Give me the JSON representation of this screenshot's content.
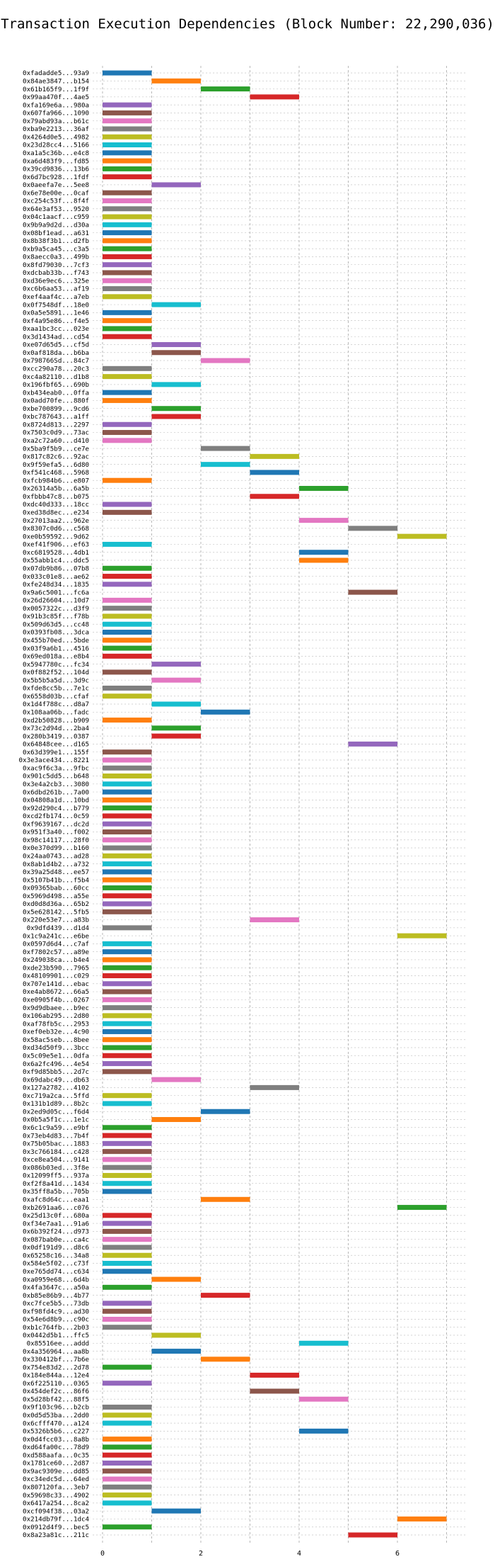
{
  "chart_data": {
    "type": "bar",
    "orientation": "horizontal-range",
    "title": "Transaction Execution Dependencies (Block Number: 22,290,036)",
    "xlabel": "",
    "ylabel": "",
    "xlim": [
      -0.2,
      7.4
    ],
    "xticks": [
      "0",
      "2",
      "4",
      "6"
    ],
    "grid": true,
    "palette": [
      "#1f77b4",
      "#ff7f0e",
      "#2ca02c",
      "#d62728",
      "#9467bd",
      "#8c564b",
      "#e377c2",
      "#7f7f7f",
      "#bcbd22",
      "#17becf"
    ],
    "transactions": [
      {
        "label": "0xfadadde5...93a9",
        "start": 0,
        "end": 1
      },
      {
        "label": "0x84ae3847...b154",
        "start": 1,
        "end": 2
      },
      {
        "label": "0x61b165f9...1f9f",
        "start": 2,
        "end": 3
      },
      {
        "label": "0x99aa470f...4ae5",
        "start": 3,
        "end": 4
      },
      {
        "label": "0xfa169e6a...980a",
        "start": 0,
        "end": 1
      },
      {
        "label": "0x607fa966...1090",
        "start": 0,
        "end": 1
      },
      {
        "label": "0x79abd93a...b61c",
        "start": 0,
        "end": 1
      },
      {
        "label": "0xba9e2213...36af",
        "start": 0,
        "end": 1
      },
      {
        "label": "0x4264d0e5...4982",
        "start": 0,
        "end": 1
      },
      {
        "label": "0x23d28cc4...5166",
        "start": 0,
        "end": 1
      },
      {
        "label": "0xa1a5c36b...e4c8",
        "start": 0,
        "end": 1
      },
      {
        "label": "0xa6d483f9...fd85",
        "start": 0,
        "end": 1
      },
      {
        "label": "0x39cd9836...13b6",
        "start": 0,
        "end": 1
      },
      {
        "label": "0x6d7bc928...1fdf",
        "start": 0,
        "end": 1
      },
      {
        "label": "0x0aeefa7e...5ee8",
        "start": 1,
        "end": 2
      },
      {
        "label": "0x6e78e00e...0caf",
        "start": 0,
        "end": 1
      },
      {
        "label": "0xc254c53f...8f4f",
        "start": 0,
        "end": 1
      },
      {
        "label": "0x64e3af53...9520",
        "start": 0,
        "end": 1
      },
      {
        "label": "0x04c1aacf...c959",
        "start": 0,
        "end": 1
      },
      {
        "label": "0x9b9a9d2d...d30a",
        "start": 0,
        "end": 1
      },
      {
        "label": "0x08bf1ead...a631",
        "start": 0,
        "end": 1
      },
      {
        "label": "0x8b38f3b1...d2fb",
        "start": 0,
        "end": 1
      },
      {
        "label": "0xb9a5ca45...c3a5",
        "start": 0,
        "end": 1
      },
      {
        "label": "0x8aecc0a3...499b",
        "start": 0,
        "end": 1
      },
      {
        "label": "0x8fd79030...7cf3",
        "start": 0,
        "end": 1
      },
      {
        "label": "0xdcbab33b...f743",
        "start": 0,
        "end": 1
      },
      {
        "label": "0xd36e9ec6...325e",
        "start": 0,
        "end": 1
      },
      {
        "label": "0xc6b6aa53...af19",
        "start": 0,
        "end": 1
      },
      {
        "label": "0xef4aaf4c...a7eb",
        "start": 0,
        "end": 1
      },
      {
        "label": "0x0f7548df...18e0",
        "start": 1,
        "end": 2
      },
      {
        "label": "0x0a5e5891...1e46",
        "start": 0,
        "end": 1
      },
      {
        "label": "0xf4a95e86...f4e5",
        "start": 0,
        "end": 1
      },
      {
        "label": "0xaa1bc3cc...023e",
        "start": 0,
        "end": 1
      },
      {
        "label": "0x3d1434ad...cd54",
        "start": 0,
        "end": 1
      },
      {
        "label": "0xe07d65d5...cf5d",
        "start": 1,
        "end": 2
      },
      {
        "label": "0x0af818da...b6ba",
        "start": 1,
        "end": 2
      },
      {
        "label": "0x798766Sd...84c7",
        "start": 2,
        "end": 3
      },
      {
        "label": "0xcc290a78...20c3",
        "start": 0,
        "end": 1
      },
      {
        "label": "0xc4a82110...d1b8",
        "start": 0,
        "end": 1
      },
      {
        "label": "0x196fbf65...690b",
        "start": 1,
        "end": 2
      },
      {
        "label": "0xb434eab0...0ffa",
        "start": 0,
        "end": 1
      },
      {
        "label": "0x0add70fe...880f",
        "start": 0,
        "end": 1
      },
      {
        "label": "0xbe700899...9cd6",
        "start": 1,
        "end": 2
      },
      {
        "label": "0xbc787643...a1ff",
        "start": 1,
        "end": 2
      },
      {
        "label": "0x8724d813...2297",
        "start": 0,
        "end": 1
      },
      {
        "label": "0x7503c0d9...73ac",
        "start": 0,
        "end": 1
      },
      {
        "label": "0xa2c72a60...d410",
        "start": 0,
        "end": 1
      },
      {
        "label": "0x5ba9f5b9...ce7e",
        "start": 2,
        "end": 3
      },
      {
        "label": "0x817c82c6...92ac",
        "start": 3,
        "end": 4
      },
      {
        "label": "0x9f59efa5...6d80",
        "start": 2,
        "end": 3
      },
      {
        "label": "0xf541c468...5968",
        "start": 3,
        "end": 4
      },
      {
        "label": "0xfcb984b6...e807",
        "start": 0,
        "end": 1
      },
      {
        "label": "0x26314a5b...6a5b",
        "start": 4,
        "end": 5
      },
      {
        "label": "0xfbbb47c8...b075",
        "start": 3,
        "end": 4
      },
      {
        "label": "0xdc40d333...18cc",
        "start": 0,
        "end": 1
      },
      {
        "label": "0xed38d8ec...e234",
        "start": 0,
        "end": 1
      },
      {
        "label": "0x27013aa2...962e",
        "start": 4,
        "end": 5
      },
      {
        "label": "0x8307c0d6...c568",
        "start": 5,
        "end": 6
      },
      {
        "label": "0xe0b59592...9d62",
        "start": 6,
        "end": 7
      },
      {
        "label": "0xef41f906...ef63",
        "start": 0,
        "end": 1
      },
      {
        "label": "0xc6819528...4db1",
        "start": 4,
        "end": 5
      },
      {
        "label": "0x55abb1c4...ddc5",
        "start": 4,
        "end": 5
      },
      {
        "label": "0x07db9b86...07b8",
        "start": 0,
        "end": 1
      },
      {
        "label": "0x033c01e8...ae62",
        "start": 0,
        "end": 1
      },
      {
        "label": "0xfe248d34...1835",
        "start": 0,
        "end": 1
      },
      {
        "label": "0x9a6c5001...fc6a",
        "start": 5,
        "end": 6
      },
      {
        "label": "0x26d26604...10d7",
        "start": 0,
        "end": 1
      },
      {
        "label": "0x0057322c...d3f9",
        "start": 0,
        "end": 1
      },
      {
        "label": "0x91b3c85f...f78b",
        "start": 0,
        "end": 1
      },
      {
        "label": "0x509d63d5...cc48",
        "start": 0,
        "end": 1
      },
      {
        "label": "0x0393fb08...3dca",
        "start": 0,
        "end": 1
      },
      {
        "label": "0x455b70ed...5bde",
        "start": 0,
        "end": 1
      },
      {
        "label": "0x03f9a6b1...4516",
        "start": 0,
        "end": 1
      },
      {
        "label": "0x69ed018a...e8b4",
        "start": 0,
        "end": 1
      },
      {
        "label": "0x5947780c...fc34",
        "start": 1,
        "end": 2
      },
      {
        "label": "0x0f882f52...104d",
        "start": 0,
        "end": 1
      },
      {
        "label": "0x5b5b5a5d...3d9c",
        "start": 1,
        "end": 2
      },
      {
        "label": "0xfde8cc5b...7e1c",
        "start": 0,
        "end": 1
      },
      {
        "label": "0x6558d03b...cfaf",
        "start": 0,
        "end": 1
      },
      {
        "label": "0x1d4f788c...d8a7",
        "start": 1,
        "end": 2
      },
      {
        "label": "0x108aa06b...fadc",
        "start": 2,
        "end": 3
      },
      {
        "label": "0xd2b50828...b909",
        "start": 0,
        "end": 1
      },
      {
        "label": "0x73c2d94d...2ba4",
        "start": 1,
        "end": 2
      },
      {
        "label": "0x280b3419...0387",
        "start": 1,
        "end": 2
      },
      {
        "label": "0x64848cee...d165",
        "start": 5,
        "end": 6
      },
      {
        "label": "0x63d399e1...155f",
        "start": 0,
        "end": 1
      },
      {
        "label": "0x3e3ace434...8221",
        "start": 0,
        "end": 1
      },
      {
        "label": "0xac9f6c3a...9fbc",
        "start": 0,
        "end": 1
      },
      {
        "label": "0x901c5dd5...b648",
        "start": 0,
        "end": 1
      },
      {
        "label": "0x3e4a2cb3...3080",
        "start": 0,
        "end": 1
      },
      {
        "label": "0x6dbd261b...7a00",
        "start": 0,
        "end": 1
      },
      {
        "label": "0x04808a1d...10bd",
        "start": 0,
        "end": 1
      },
      {
        "label": "0x92d290c4...b779",
        "start": 0,
        "end": 1
      },
      {
        "label": "0xcd2fb174...0c59",
        "start": 0,
        "end": 1
      },
      {
        "label": "0xf9639167...dc2d",
        "start": 0,
        "end": 1
      },
      {
        "label": "0x951f3a40...f002",
        "start": 0,
        "end": 1
      },
      {
        "label": "0x98c14117...28f0",
        "start": 0,
        "end": 1
      },
      {
        "label": "0x0e370d99...b160",
        "start": 0,
        "end": 1
      },
      {
        "label": "0x24aa0743...ad28",
        "start": 0,
        "end": 1
      },
      {
        "label": "0x8ab1d4b2...a732",
        "start": 0,
        "end": 1
      },
      {
        "label": "0x39a25d48...ee57",
        "start": 0,
        "end": 1
      },
      {
        "label": "0x5107b41b...f5b4",
        "start": 0,
        "end": 1
      },
      {
        "label": "0x09365bab...60cc",
        "start": 0,
        "end": 1
      },
      {
        "label": "0x5969d498...a55e",
        "start": 0,
        "end": 1
      },
      {
        "label": "0xd0d8d36a...65b2",
        "start": 0,
        "end": 1
      },
      {
        "label": "0x5e628142...5fb5",
        "start": 0,
        "end": 1
      },
      {
        "label": "0x220e53e7...a83b",
        "start": 3,
        "end": 4
      },
      {
        "label": "0x9dfd439...d1d4",
        "start": 0,
        "end": 1
      },
      {
        "label": "0x1c9a241c...e6be",
        "start": 6,
        "end": 7
      },
      {
        "label": "0x0597d6d4...c7af",
        "start": 0,
        "end": 1
      },
      {
        "label": "0xf7802c57...a89e",
        "start": 0,
        "end": 1
      },
      {
        "label": "0x249038ca...b4e4",
        "start": 0,
        "end": 1
      },
      {
        "label": "0xde23b590...7965",
        "start": 0,
        "end": 1
      },
      {
        "label": "0x48109901...c029",
        "start": 0,
        "end": 1
      },
      {
        "label": "0x707e141d...ebac",
        "start": 0,
        "end": 1
      },
      {
        "label": "0xe4ab8672...66a5",
        "start": 0,
        "end": 1
      },
      {
        "label": "0xe0905f4b...0267",
        "start": 0,
        "end": 1
      },
      {
        "label": "0x9d9dbaee...b9ec",
        "start": 0,
        "end": 1
      },
      {
        "label": "0x106ab295...2d80",
        "start": 0,
        "end": 1
      },
      {
        "label": "0xaf78fb5c...2953",
        "start": 0,
        "end": 1
      },
      {
        "label": "0xef0eb32e...4c90",
        "start": 0,
        "end": 1
      },
      {
        "label": "0x58ac5seb...8bee",
        "start": 0,
        "end": 1
      },
      {
        "label": "0xd34d50f9...3bcc",
        "start": 0,
        "end": 1
      },
      {
        "label": "0x5c09e5e1...0dfa",
        "start": 0,
        "end": 1
      },
      {
        "label": "0x6a2fc496...4e54",
        "start": 0,
        "end": 1
      },
      {
        "label": "0xf9d85bb5...2d7c",
        "start": 0,
        "end": 1
      },
      {
        "label": "0x69dabc49...db63",
        "start": 1,
        "end": 2
      },
      {
        "label": "0x127a2782...4102",
        "start": 3,
        "end": 4
      },
      {
        "label": "0xc719a2ca...5ffd",
        "start": 0,
        "end": 1
      },
      {
        "label": "0x131b1d89...8b2c",
        "start": 0,
        "end": 1
      },
      {
        "label": "0x2ed9d05c...f6d4",
        "start": 2,
        "end": 3
      },
      {
        "label": "0x0b5a5f1c...1e1c",
        "start": 1,
        "end": 2
      },
      {
        "label": "0x6c1c9a59...e9bf",
        "start": 0,
        "end": 1
      },
      {
        "label": "0x73eb4d83...7b4f",
        "start": 0,
        "end": 1
      },
      {
        "label": "0x75b05bac...1883",
        "start": 0,
        "end": 1
      },
      {
        "label": "0x3c766184...c428",
        "start": 0,
        "end": 1
      },
      {
        "label": "0xce8ea504...9141",
        "start": 0,
        "end": 1
      },
      {
        "label": "0x086b03ed...3f8e",
        "start": 0,
        "end": 1
      },
      {
        "label": "0x12099ff5...937a",
        "start": 0,
        "end": 1
      },
      {
        "label": "0xf2f8a41d...1434",
        "start": 0,
        "end": 1
      },
      {
        "label": "0x35ff8a5b...705b",
        "start": 0,
        "end": 1
      },
      {
        "label": "0xafc8d64c...eaa1",
        "start": 2,
        "end": 3
      },
      {
        "label": "0xb2691aa6...c076",
        "start": 6,
        "end": 7
      },
      {
        "label": "0x25d13c0f...680a",
        "start": 0,
        "end": 1
      },
      {
        "label": "0xf34e7aa1...91a6",
        "start": 0,
        "end": 1
      },
      {
        "label": "0x6b392f24...d973",
        "start": 0,
        "end": 1
      },
      {
        "label": "0x087bab0e...ca4c",
        "start": 0,
        "end": 1
      },
      {
        "label": "0x0df191d9...d8c6",
        "start": 0,
        "end": 1
      },
      {
        "label": "0x65258c16...34a8",
        "start": 0,
        "end": 1
      },
      {
        "label": "0x584e5f02...c73f",
        "start": 0,
        "end": 1
      },
      {
        "label": "0xe765dd74...c634",
        "start": 0,
        "end": 1
      },
      {
        "label": "0xa0959e68...6d4b",
        "start": 1,
        "end": 2
      },
      {
        "label": "0x4fa3647c...a50a",
        "start": 0,
        "end": 1
      },
      {
        "label": "0xb85e86b9...4b77",
        "start": 2,
        "end": 3
      },
      {
        "label": "0xc7fce5b5...73db",
        "start": 0,
        "end": 1
      },
      {
        "label": "0xf98fd4c9...ad30",
        "start": 0,
        "end": 1
      },
      {
        "label": "0x54e6d8b9...c90c",
        "start": 0,
        "end": 1
      },
      {
        "label": "0xb1c764fb...2b03",
        "start": 0,
        "end": 1
      },
      {
        "label": "0x0442d5b1...ffc5",
        "start": 1,
        "end": 2
      },
      {
        "label": "0x85516ee...addd",
        "start": 4,
        "end": 5
      },
      {
        "label": "0x4a356964...aa8b",
        "start": 1,
        "end": 2
      },
      {
        "label": "0x330412bf...7b6e",
        "start": 2,
        "end": 3
      },
      {
        "label": "0x754e83d2...2d78",
        "start": 0,
        "end": 1
      },
      {
        "label": "0x184e844a...12e4",
        "start": 3,
        "end": 4
      },
      {
        "label": "0x6f225110...0365",
        "start": 0,
        "end": 1
      },
      {
        "label": "0x454def2c...86f6",
        "start": 3,
        "end": 4
      },
      {
        "label": "0x5d28bf42...88f5",
        "start": 4,
        "end": 5
      },
      {
        "label": "0x9f103c96...b2cb",
        "start": 0,
        "end": 1
      },
      {
        "label": "0x0d5d53ba...2dd0",
        "start": 0,
        "end": 1
      },
      {
        "label": "0x6cfff470...a124",
        "start": 0,
        "end": 1
      },
      {
        "label": "0x5326b5b6...c227",
        "start": 4,
        "end": 5
      },
      {
        "label": "0x0d4fcc03...8a8b",
        "start": 0,
        "end": 1
      },
      {
        "label": "0xd64fa00c...78d9",
        "start": 0,
        "end": 1
      },
      {
        "label": "0xd588aafa...0c35",
        "start": 0,
        "end": 1
      },
      {
        "label": "0x1781ce60...2d87",
        "start": 0,
        "end": 1
      },
      {
        "label": "0x9ac9309e...dd85",
        "start": 0,
        "end": 1
      },
      {
        "label": "0xc34edc5d...64ed",
        "start": 0,
        "end": 1
      },
      {
        "label": "0x807120fa...3eb7",
        "start": 0,
        "end": 1
      },
      {
        "label": "0x59698c33...4902",
        "start": 0,
        "end": 1
      },
      {
        "label": "0x6417a254...8ca2",
        "start": 0,
        "end": 1
      },
      {
        "label": "0xcf094f38...03a2",
        "start": 1,
        "end": 2
      },
      {
        "label": "0x214db79f...1dc4",
        "start": 6,
        "end": 7
      },
      {
        "label": "0x0912d4f9...bec5",
        "start": 0,
        "end": 1
      },
      {
        "label": "0x8a23a81c...211c",
        "start": 5,
        "end": 6
      }
    ]
  }
}
